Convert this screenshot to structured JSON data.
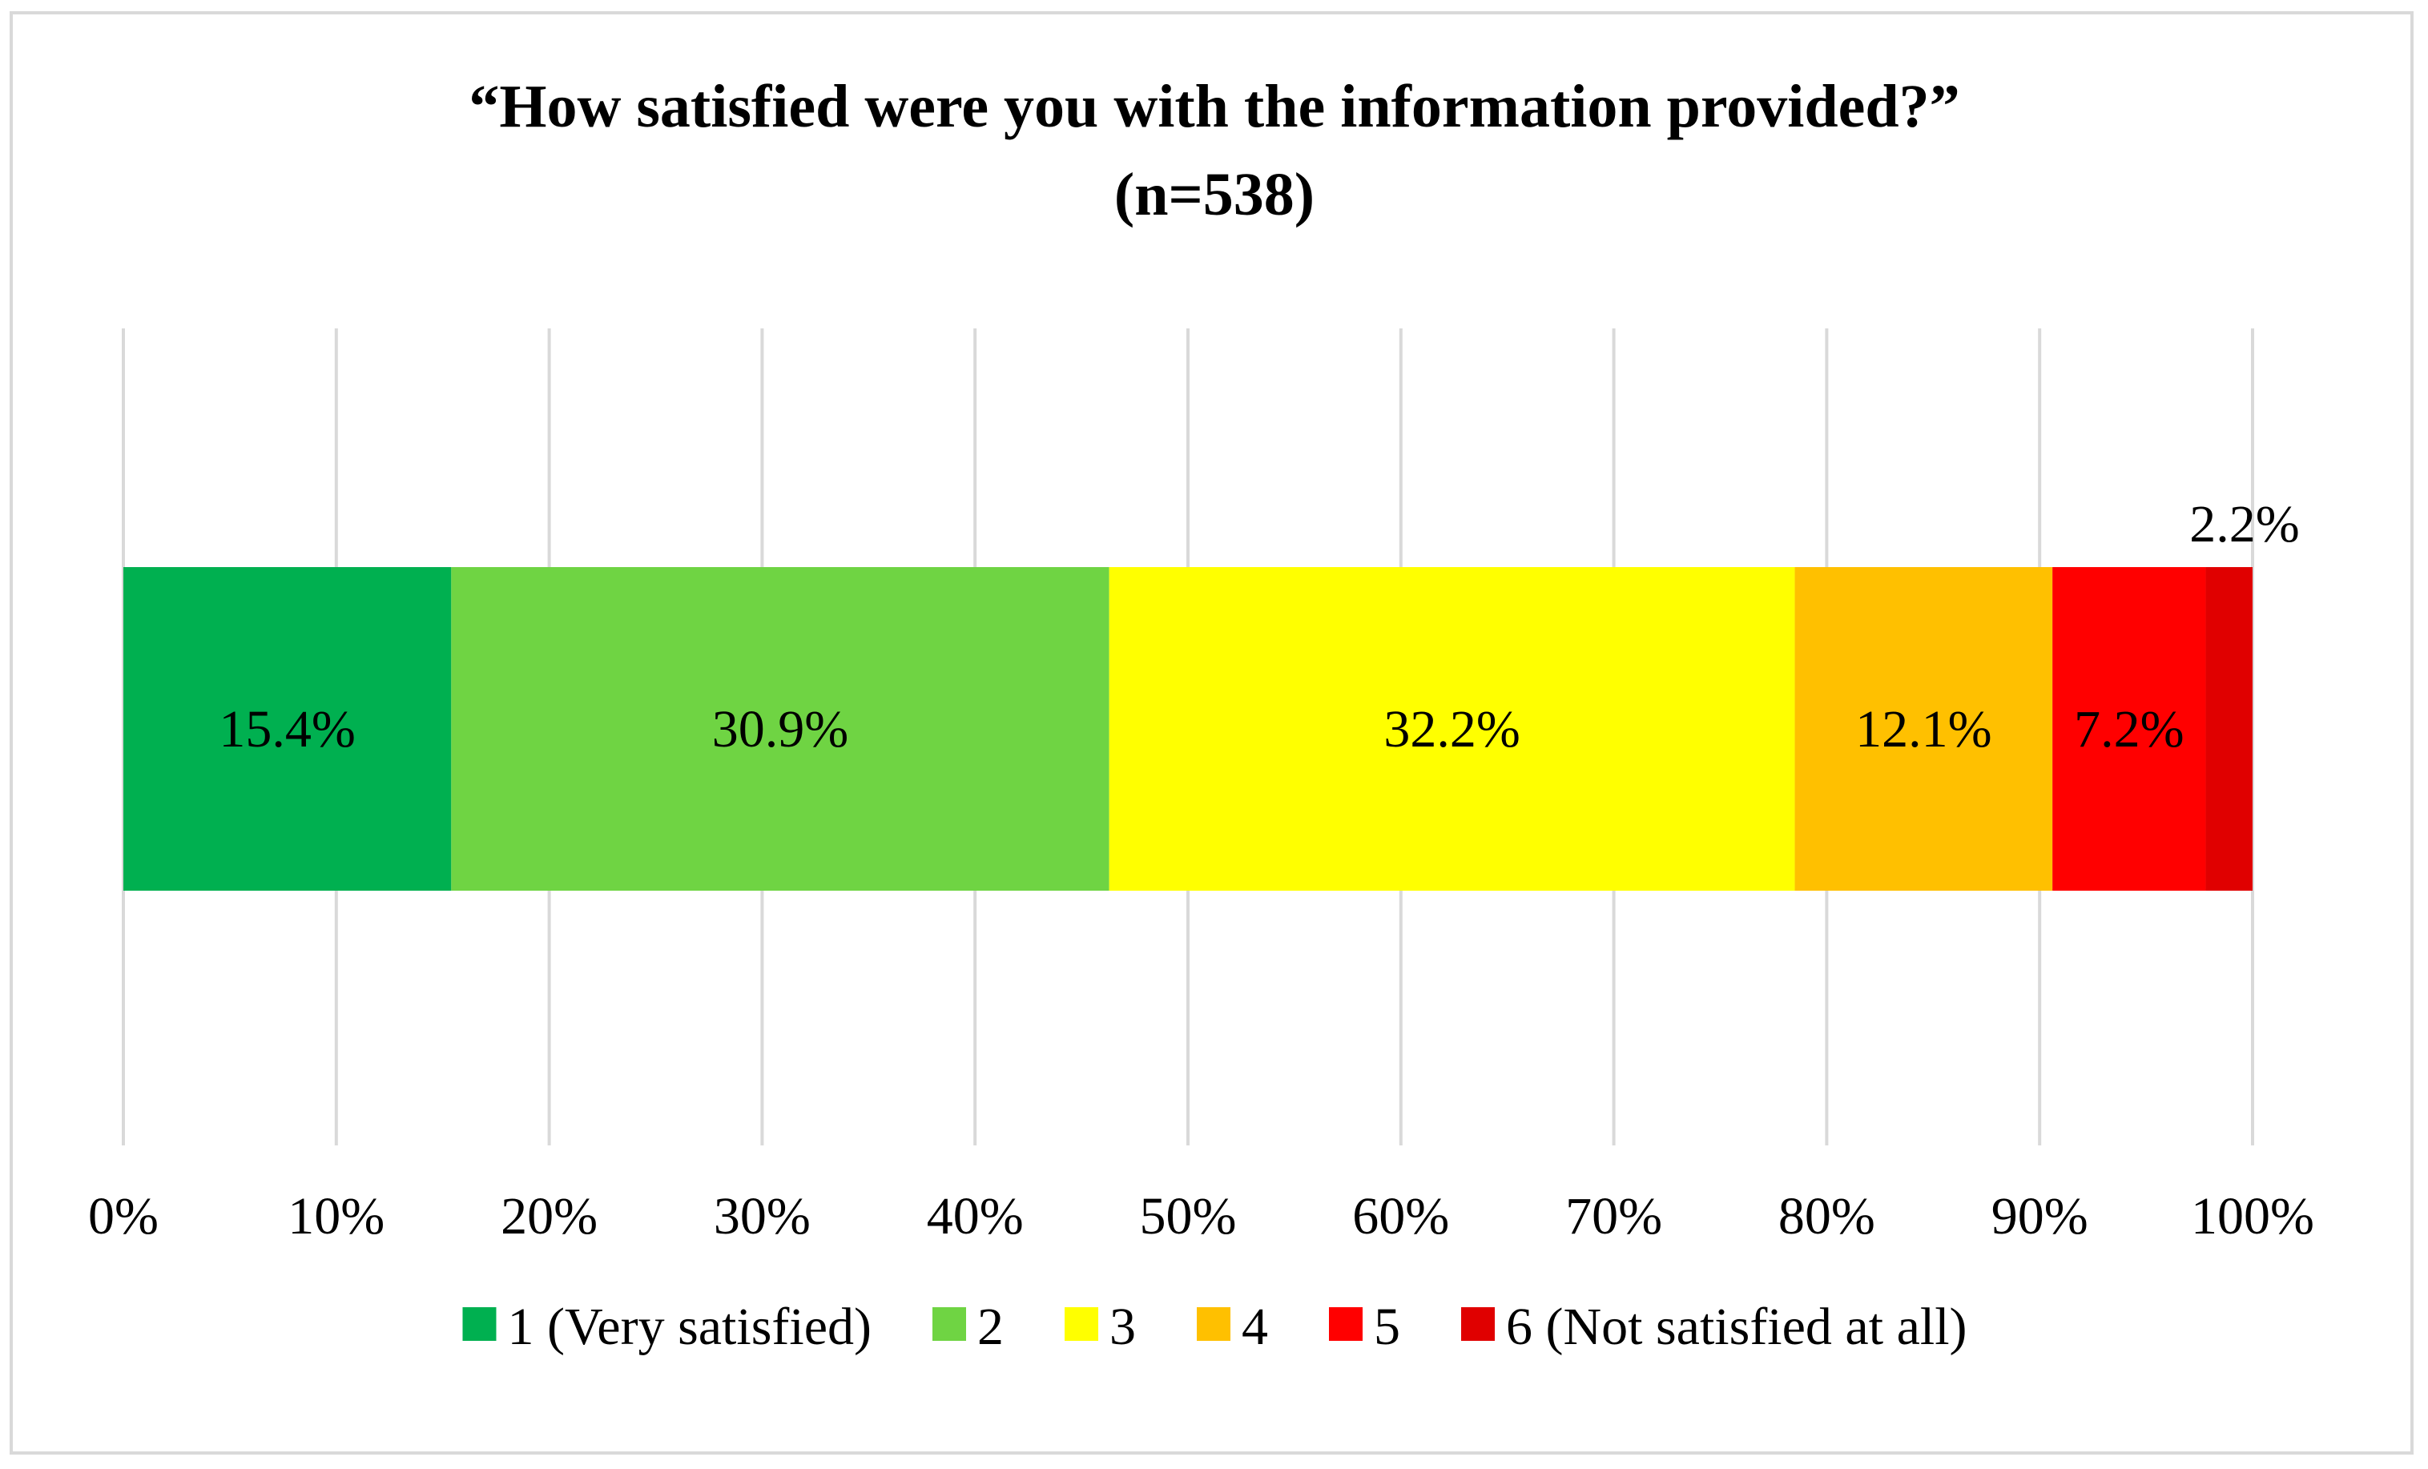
{
  "chart_data": {
    "type": "bar",
    "orientation": "horizontal",
    "stacked": true,
    "title": "“How satisfied were you with the information provided?”",
    "subtitle": "(n=538)",
    "xlabel": "",
    "ylabel": "",
    "xlim": [
      0,
      100
    ],
    "grid": true,
    "legend_position": "bottom",
    "x_ticks": [
      "0%",
      "10%",
      "20%",
      "30%",
      "40%",
      "50%",
      "60%",
      "70%",
      "80%",
      "90%",
      "100%"
    ],
    "series": [
      {
        "name": "1 (Very satisfied)",
        "values": [
          15.4
        ],
        "label": "15.4%",
        "color": "#00b050"
      },
      {
        "name": "2",
        "values": [
          30.9
        ],
        "label": "30.9%",
        "color": "#6fd443"
      },
      {
        "name": "3",
        "values": [
          32.2
        ],
        "label": "32.2%",
        "color": "#ffff00"
      },
      {
        "name": "4",
        "values": [
          12.1
        ],
        "label": "12.1%",
        "color": "#ffc000"
      },
      {
        "name": "5",
        "values": [
          7.2
        ],
        "label": "7.2%",
        "color": "#ff0000"
      },
      {
        "name": "6 (Not satisfied at all)",
        "values": [
          2.2
        ],
        "label": "2.2%",
        "color": "#e00000"
      }
    ]
  }
}
